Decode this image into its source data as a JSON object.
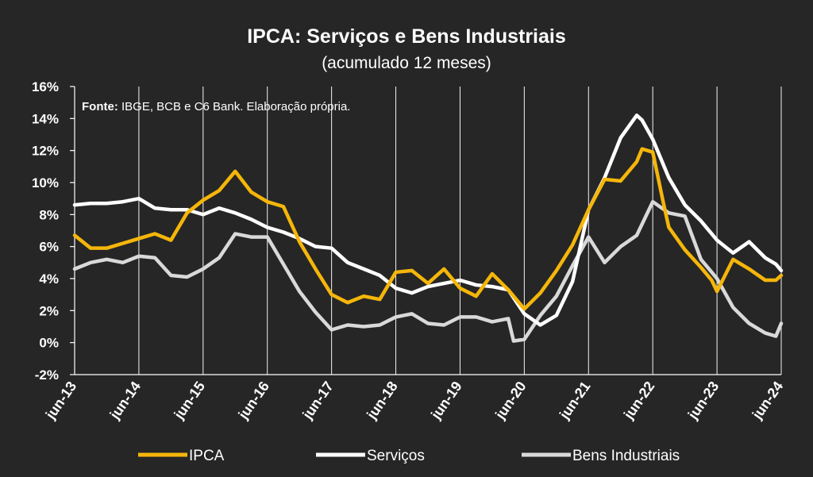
{
  "chart_data": {
    "type": "line",
    "title": "IPCA: Serviços e Bens Industriais",
    "subtitle": "(acumulado 12 meses)",
    "source_label": "Fonte:",
    "source_text": " IBGE, BCB e C6 Bank. Elaboração própria.",
    "ylim": [
      -2,
      16
    ],
    "y_ticks": [
      "16%",
      "14%",
      "12%",
      "10%",
      "8%",
      "6%",
      "4%",
      "2%",
      "0%",
      "-2%"
    ],
    "x_ticks": [
      "jun-13",
      "jun-14",
      "jun-15",
      "jun-16",
      "jun-17",
      "jun-18",
      "jun-19",
      "jun-20",
      "jun-21",
      "jun-22",
      "jun-23",
      "jun-24"
    ],
    "x_start": "jun-13",
    "x_end": "jun-24",
    "grid": "vertical",
    "legend_position": "bottom",
    "colors": {
      "background": "#262626",
      "ipca": "#F5B60A",
      "servicos": "#FFFFFF",
      "bens": "#D9D9D9"
    },
    "series": [
      {
        "name": "IPCA",
        "key": "ipca",
        "points": [
          [
            "jun-13",
            6.7
          ],
          [
            "set-13",
            5.9
          ],
          [
            "dez-13",
            5.9
          ],
          [
            "mar-14",
            6.2
          ],
          [
            "jun-14",
            6.5
          ],
          [
            "set-14",
            6.8
          ],
          [
            "dez-14",
            6.4
          ],
          [
            "mar-15",
            8.1
          ],
          [
            "jun-15",
            8.9
          ],
          [
            "set-15",
            9.5
          ],
          [
            "dez-15",
            10.7
          ],
          [
            "mar-16",
            9.4
          ],
          [
            "jun-16",
            8.8
          ],
          [
            "set-16",
            8.5
          ],
          [
            "dez-16",
            6.3
          ],
          [
            "mar-17",
            4.6
          ],
          [
            "jun-17",
            3.0
          ],
          [
            "set-17",
            2.5
          ],
          [
            "dez-17",
            2.9
          ],
          [
            "mar-18",
            2.7
          ],
          [
            "jun-18",
            4.4
          ],
          [
            "set-18",
            4.5
          ],
          [
            "dez-18",
            3.7
          ],
          [
            "mar-19",
            4.6
          ],
          [
            "jun-19",
            3.4
          ],
          [
            "set-19",
            2.9
          ],
          [
            "dez-19",
            4.3
          ],
          [
            "mar-20",
            3.3
          ],
          [
            "jun-20",
            2.1
          ],
          [
            "set-20",
            3.1
          ],
          [
            "dez-20",
            4.5
          ],
          [
            "mar-21",
            6.1
          ],
          [
            "jun-21",
            8.3
          ],
          [
            "set-21",
            10.2
          ],
          [
            "dez-21",
            10.1
          ],
          [
            "mar-22",
            11.3
          ],
          [
            "abr-22",
            12.1
          ],
          [
            "jun-22",
            11.9
          ],
          [
            "ago-22",
            8.7
          ],
          [
            "set-22",
            7.2
          ],
          [
            "dez-22",
            5.8
          ],
          [
            "mar-23",
            4.7
          ],
          [
            "mai-23",
            3.9
          ],
          [
            "jun-23",
            3.2
          ],
          [
            "set-23",
            5.2
          ],
          [
            "dez-23",
            4.6
          ],
          [
            "mar-24",
            3.9
          ],
          [
            "mai-24",
            3.9
          ],
          [
            "jun-24",
            4.2
          ]
        ]
      },
      {
        "name": "Serviços",
        "key": "servicos",
        "points": [
          [
            "jun-13",
            8.6
          ],
          [
            "set-13",
            8.7
          ],
          [
            "dez-13",
            8.7
          ],
          [
            "mar-14",
            8.8
          ],
          [
            "jun-14",
            9.0
          ],
          [
            "set-14",
            8.4
          ],
          [
            "dez-14",
            8.3
          ],
          [
            "mar-15",
            8.3
          ],
          [
            "jun-15",
            8.0
          ],
          [
            "set-15",
            8.4
          ],
          [
            "dez-15",
            8.1
          ],
          [
            "mar-16",
            7.7
          ],
          [
            "jun-16",
            7.2
          ],
          [
            "set-16",
            6.9
          ],
          [
            "dez-16",
            6.5
          ],
          [
            "mar-17",
            6.0
          ],
          [
            "jun-17",
            5.9
          ],
          [
            "set-17",
            5.0
          ],
          [
            "dez-17",
            4.6
          ],
          [
            "mar-18",
            4.2
          ],
          [
            "jun-18",
            3.4
          ],
          [
            "set-18",
            3.1
          ],
          [
            "dez-18",
            3.5
          ],
          [
            "mar-19",
            3.7
          ],
          [
            "jun-19",
            3.9
          ],
          [
            "set-19",
            3.6
          ],
          [
            "dez-19",
            3.5
          ],
          [
            "mar-20",
            3.3
          ],
          [
            "jun-20",
            1.8
          ],
          [
            "set-20",
            1.1
          ],
          [
            "dez-20",
            1.7
          ],
          [
            "mar-21",
            3.8
          ],
          [
            "jun-21",
            8.3
          ],
          [
            "set-21",
            10.3
          ],
          [
            "dez-21",
            12.8
          ],
          [
            "mar-22",
            14.2
          ],
          [
            "abr-22",
            13.9
          ],
          [
            "jun-22",
            12.7
          ],
          [
            "set-22",
            10.3
          ],
          [
            "dez-22",
            8.6
          ],
          [
            "mar-23",
            7.6
          ],
          [
            "jun-23",
            6.4
          ],
          [
            "set-23",
            5.6
          ],
          [
            "dez-23",
            6.3
          ],
          [
            "mar-24",
            5.3
          ],
          [
            "mai-24",
            4.9
          ],
          [
            "jun-24",
            4.5
          ]
        ]
      },
      {
        "name": "Bens Industriais",
        "key": "bens",
        "points": [
          [
            "jun-13",
            4.6
          ],
          [
            "set-13",
            5.0
          ],
          [
            "dez-13",
            5.2
          ],
          [
            "mar-14",
            5.0
          ],
          [
            "jun-14",
            5.4
          ],
          [
            "set-14",
            5.3
          ],
          [
            "dez-14",
            4.2
          ],
          [
            "mar-15",
            4.1
          ],
          [
            "jun-15",
            4.6
          ],
          [
            "set-15",
            5.3
          ],
          [
            "dez-15",
            6.8
          ],
          [
            "mar-16",
            6.6
          ],
          [
            "jun-16",
            6.6
          ],
          [
            "set-16",
            4.9
          ],
          [
            "dez-16",
            3.2
          ],
          [
            "mar-17",
            1.9
          ],
          [
            "jun-17",
            0.8
          ],
          [
            "set-17",
            1.1
          ],
          [
            "dez-17",
            1.0
          ],
          [
            "mar-18",
            1.1
          ],
          [
            "jun-18",
            1.6
          ],
          [
            "set-18",
            1.8
          ],
          [
            "dez-18",
            1.2
          ],
          [
            "mar-19",
            1.1
          ],
          [
            "jun-19",
            1.6
          ],
          [
            "set-19",
            1.6
          ],
          [
            "dez-19",
            1.3
          ],
          [
            "mar-20",
            1.5
          ],
          [
            "abr-20",
            0.1
          ],
          [
            "jun-20",
            0.2
          ],
          [
            "set-20",
            1.7
          ],
          [
            "dez-20",
            2.9
          ],
          [
            "mar-21",
            4.8
          ],
          [
            "jun-21",
            6.6
          ],
          [
            "set-21",
            5.0
          ],
          [
            "dez-21",
            6.0
          ],
          [
            "mar-22",
            6.7
          ],
          [
            "jun-22",
            8.8
          ],
          [
            "set-22",
            8.1
          ],
          [
            "dez-22",
            7.9
          ],
          [
            "mar-23",
            5.2
          ],
          [
            "jun-23",
            4.0
          ],
          [
            "set-23",
            2.2
          ],
          [
            "dez-23",
            1.2
          ],
          [
            "mar-24",
            0.6
          ],
          [
            "mai-24",
            0.4
          ],
          [
            "jun-24",
            1.2
          ]
        ]
      }
    ]
  }
}
